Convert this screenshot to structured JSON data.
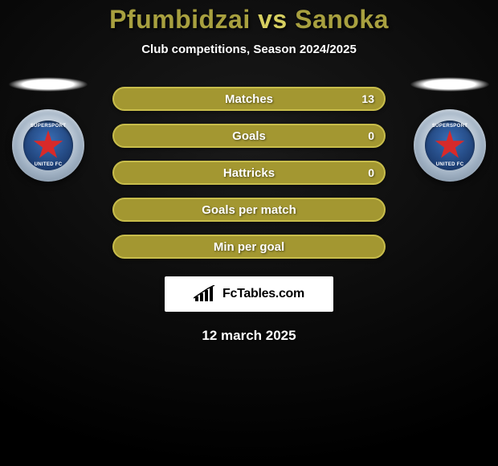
{
  "title": {
    "left": "Pfumbidzai",
    "vs": " vs ",
    "right": "Sanoka",
    "left_color": "#a8a03f",
    "right_color": "#a8a03f",
    "vs_color": "#d6cf60"
  },
  "subtitle": "Club competitions, Season 2024/2025",
  "bars": [
    {
      "label": "Matches",
      "left": "",
      "right": "13",
      "fill": "#a39731",
      "border": "#c8bd4b"
    },
    {
      "label": "Goals",
      "left": "",
      "right": "0",
      "fill": "#a39731",
      "border": "#c8bd4b"
    },
    {
      "label": "Hattricks",
      "left": "",
      "right": "0",
      "fill": "#a39731",
      "border": "#c8bd4b"
    },
    {
      "label": "Goals per match",
      "left": "",
      "right": "",
      "fill": "#a39731",
      "border": "#c8bd4b"
    },
    {
      "label": "Min per goal",
      "left": "",
      "right": "",
      "fill": "#a39731",
      "border": "#c8bd4b"
    }
  ],
  "badge": {
    "top_text": "SUPERSPORT",
    "bottom_text": "UNITED FC"
  },
  "logo": {
    "text": "FcTables.com"
  },
  "date": "12 march 2025",
  "colors": {
    "page_bg_center": "#1a1a1a",
    "page_bg_edge": "#000000"
  }
}
